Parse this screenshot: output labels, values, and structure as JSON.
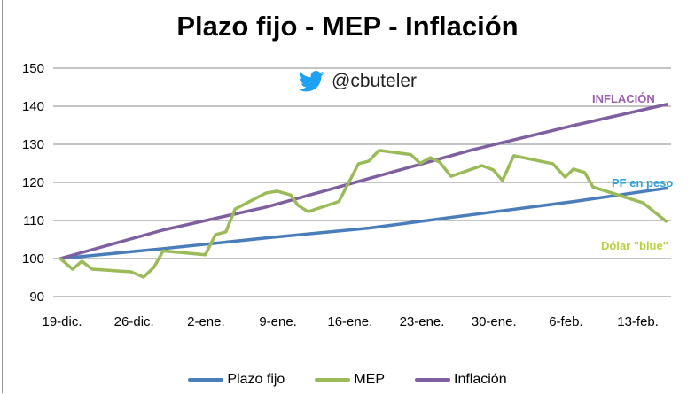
{
  "twitter_handle": "@cbuteler",
  "chart_data": {
    "type": "line",
    "title": "Plazo fijo - MEP - Inflación",
    "xlabel": "",
    "ylabel": "",
    "ylim": [
      90,
      150
    ],
    "yticks": [
      90,
      100,
      110,
      120,
      130,
      140,
      150
    ],
    "xticks": [
      {
        "day": 0,
        "label": "19-dic."
      },
      {
        "day": 7,
        "label": "26-dic."
      },
      {
        "day": 14,
        "label": "2-ene."
      },
      {
        "day": 21,
        "label": "9-ene."
      },
      {
        "day": 28,
        "label": "16-ene."
      },
      {
        "day": 35,
        "label": "23-ene."
      },
      {
        "day": 42,
        "label": "30-ene."
      },
      {
        "day": 49,
        "label": "6-feb."
      },
      {
        "day": 56,
        "label": "13-feb."
      }
    ],
    "x_unit": "days since 19-dic.",
    "grid": true,
    "legend_position": "bottom",
    "series": [
      {
        "name": "Plazo fijo",
        "color": "#4a7ebb",
        "annotation": "PF en peso",
        "annotation_color": "#2ea3dc",
        "points": [
          [
            0,
            100
          ],
          [
            10,
            102.6
          ],
          [
            20,
            105.4
          ],
          [
            30,
            108
          ],
          [
            40,
            111.5
          ],
          [
            50,
            115
          ],
          [
            59,
            118.5
          ]
        ]
      },
      {
        "name": "MEP",
        "color": "#9bbb59",
        "annotation": "Dólar \"blue\"",
        "annotation_color": "#b5d33d",
        "points": [
          [
            0,
            100
          ],
          [
            1.2,
            97.2
          ],
          [
            2.1,
            99.3
          ],
          [
            3.1,
            97.2
          ],
          [
            6.9,
            96.5
          ],
          [
            8.1,
            95.1
          ],
          [
            9.1,
            97.7
          ],
          [
            10,
            102
          ],
          [
            14.1,
            101
          ],
          [
            15.1,
            106.3
          ],
          [
            16.1,
            107
          ],
          [
            17,
            113
          ],
          [
            20,
            117.2
          ],
          [
            21.1,
            117.7
          ],
          [
            22.4,
            116.7
          ],
          [
            23.1,
            114
          ],
          [
            24.1,
            112.3
          ],
          [
            27.1,
            115
          ],
          [
            29,
            124.9
          ],
          [
            30,
            125.6
          ],
          [
            31,
            128.4
          ],
          [
            34.1,
            127.3
          ],
          [
            35,
            125
          ],
          [
            36,
            126.5
          ],
          [
            36.9,
            125.3
          ],
          [
            38,
            121.6
          ],
          [
            41,
            124.4
          ],
          [
            42.1,
            123.3
          ],
          [
            43,
            120.5
          ],
          [
            44.1,
            127
          ],
          [
            47.9,
            124.9
          ],
          [
            49.1,
            121.4
          ],
          [
            49.9,
            123.5
          ],
          [
            51,
            122.6
          ],
          [
            51.8,
            118.8
          ],
          [
            56.7,
            114.6
          ],
          [
            58.9,
            109.8
          ]
        ]
      },
      {
        "name": "Inflación",
        "color": "#7f5fa0",
        "annotation": "INFLACIÓN",
        "annotation_color": "#9b5fb0",
        "points": [
          [
            0,
            100
          ],
          [
            10,
            107.5
          ],
          [
            20,
            113.5
          ],
          [
            30,
            121
          ],
          [
            40,
            128.5
          ],
          [
            50,
            135
          ],
          [
            59,
            140.5
          ]
        ]
      }
    ]
  }
}
